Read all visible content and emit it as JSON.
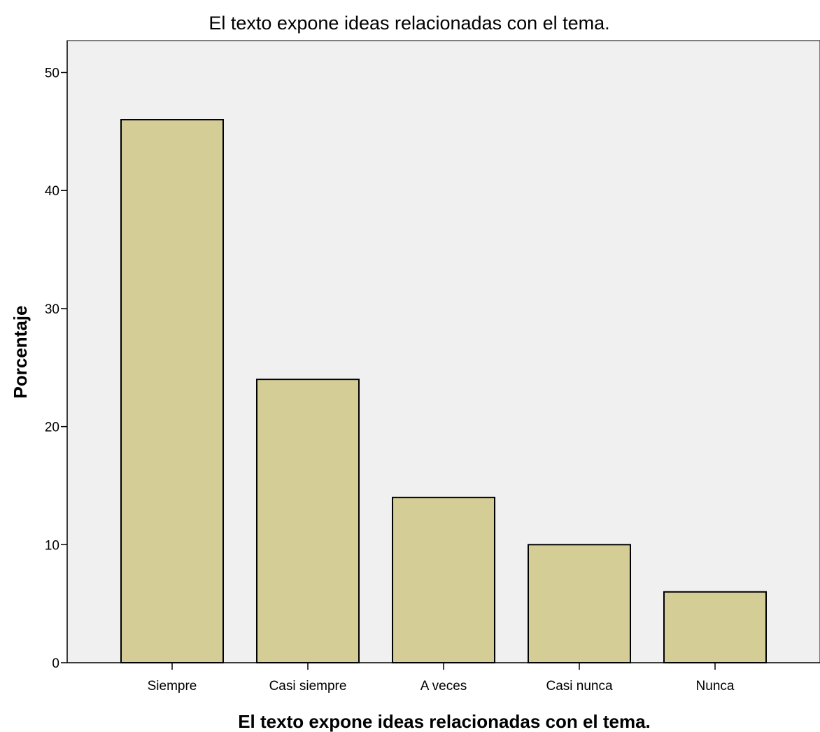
{
  "chart_data": {
    "type": "bar",
    "title": "El texto expone ideas relacionadas con el tema.",
    "xlabel": "El texto expone ideas relacionadas con el tema.",
    "ylabel": "Porcentaje",
    "categories": [
      "Siempre",
      "Casi siempre",
      "A veces",
      "Casi nunca",
      "Nunca"
    ],
    "values": [
      46,
      24,
      14,
      10,
      6
    ],
    "ylim": [
      0,
      52.7
    ],
    "yticks": [
      "0",
      "10",
      "20",
      "30",
      "40",
      "50"
    ],
    "grid": false,
    "legend": "none",
    "colors": {
      "bar_fill": "#d4cd96",
      "bar_stroke": "#000000",
      "plot_background": "#f0f0f0"
    }
  }
}
